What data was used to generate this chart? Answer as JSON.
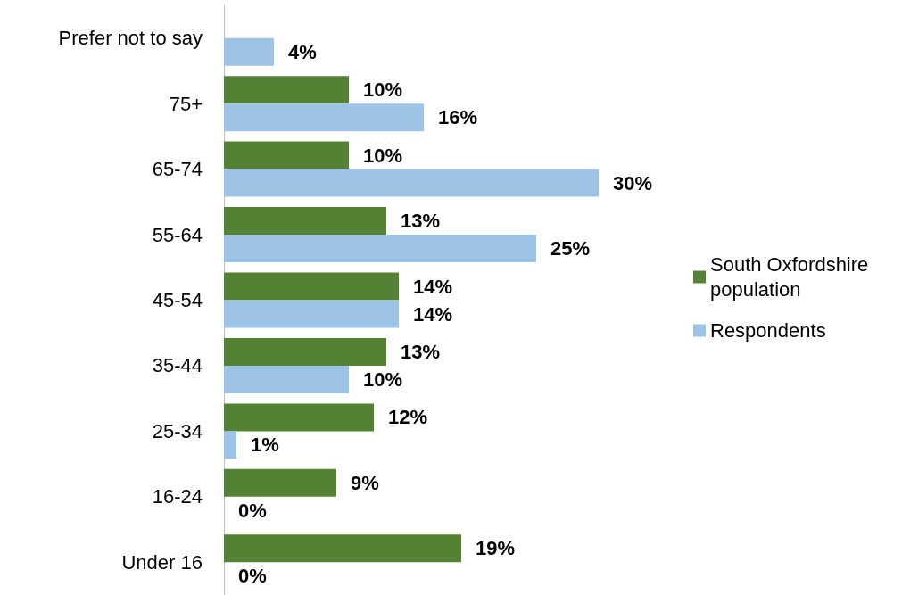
{
  "chart_data": {
    "type": "bar",
    "orientation": "horizontal",
    "categories": [
      "Prefer not to say",
      "75+",
      "65-74",
      "55-64",
      "45-54",
      "35-44",
      "25-34",
      "16-24",
      "Under 16"
    ],
    "series": [
      {
        "name": "South Oxfordshire population",
        "color": "#548235",
        "values": [
          null,
          10,
          10,
          13,
          14,
          13,
          12,
          9,
          19
        ],
        "value_labels": [
          null,
          "10%",
          "10%",
          "13%",
          "14%",
          "13%",
          "12%",
          "9%",
          "19%"
        ]
      },
      {
        "name": "Respondents",
        "color": "#9dc3e6",
        "values": [
          4,
          16,
          30,
          25,
          14,
          10,
          1,
          0,
          0
        ],
        "value_labels": [
          "4%",
          "16%",
          "30%",
          "25%",
          "14%",
          "10%",
          "1%",
          "0%",
          "0%"
        ]
      }
    ],
    "legend": "right",
    "grid": false
  }
}
